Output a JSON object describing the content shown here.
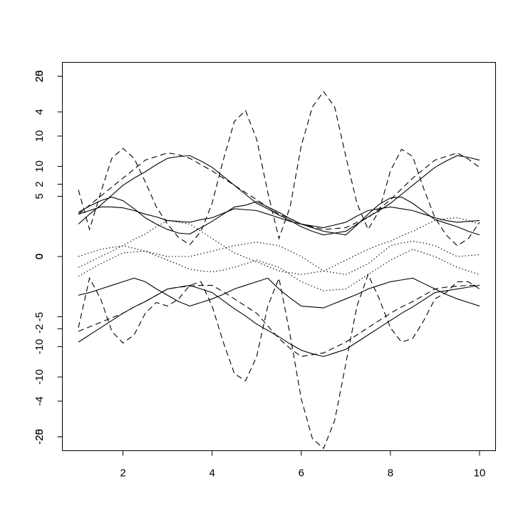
{
  "chart_data": {
    "type": "line",
    "x": [
      1,
      1.25,
      1.5,
      1.75,
      2,
      2.25,
      2.5,
      2.75,
      3,
      3.25,
      3.5,
      3.75,
      4,
      4.25,
      4.5,
      4.75,
      5,
      5.25,
      5.5,
      5.75,
      6,
      6.25,
      6.5,
      6.75,
      7,
      7.25,
      7.5,
      7.75,
      8,
      8.25,
      8.5,
      8.75,
      9,
      9.25,
      9.5,
      9.75,
      10
    ],
    "xlim": [
      0.64,
      10.36
    ],
    "xticks": [
      2,
      4,
      6,
      8,
      10
    ],
    "y_axes": [
      {
        "ylim": [
          -21.55,
          21.55
        ],
        "yticks": [
          -20,
          -10,
          0,
          10,
          20
        ]
      },
      {
        "ylim": [
          -26.93,
          26.93
        ],
        "yticks": [
          -25,
          0,
          25
        ]
      },
      {
        "ylim": [
          -16.12,
          16.12
        ],
        "yticks": [
          -10,
          -5,
          0,
          5,
          10
        ]
      },
      {
        "ylim": [
          -5.37,
          5.37
        ],
        "yticks": [
          -4,
          -2,
          0,
          2,
          4
        ]
      }
    ],
    "series": [
      {
        "color": "#000000",
        "line_style": "dashed",
        "values": [
          7.4,
          3.0,
          7.1,
          10.9,
          12.0,
          10.9,
          8.3,
          5.5,
          3.6,
          2.1,
          1.3,
          2.8,
          5.9,
          10.7,
          15.0,
          16.2,
          13.0,
          7.1,
          2.0,
          5.5,
          12.3,
          16.6,
          18.3,
          16.6,
          11.1,
          5.9,
          3.0,
          5.1,
          9.5,
          11.9,
          11.1,
          7.5,
          4.3,
          2.4,
          1.2,
          2.0,
          3.8
        ]
      },
      {
        "color": "#000000",
        "line_style": "dashed",
        "values": [
          -7.9,
          -2.4,
          -4.7,
          -8.3,
          -9.6,
          -8.7,
          -6.3,
          -5.1,
          -5.5,
          -4.7,
          -3.2,
          -2.8,
          -5.5,
          -9.5,
          -13.0,
          -13.8,
          -11.1,
          -5.5,
          -2.4,
          -8.7,
          -15.8,
          -20.2,
          -21.3,
          -18.2,
          -11.9,
          -5.5,
          -2.0,
          -4.7,
          -7.9,
          -9.5,
          -9.1,
          -7.1,
          -4.7,
          -4.0,
          -2.8,
          -2.8,
          -3.6
        ]
      },
      {
        "color": "#000000",
        "line_style": "dashed",
        "values": [
          4.7,
          5.7,
          6.7,
          7.7,
          8.7,
          9.7,
          10.7,
          11.1,
          11.5,
          11.3,
          10.9,
          10.2,
          9.5,
          8.7,
          7.9,
          7.1,
          6.3,
          5.5,
          4.7,
          4.2,
          3.6,
          3.3,
          3.0,
          3.1,
          3.2,
          3.8,
          4.3,
          5.3,
          6.3,
          7.5,
          8.7,
          9.7,
          10.7,
          11.1,
          11.5,
          10.8,
          9.9
        ]
      },
      {
        "color": "#000000",
        "line_style": "dashed",
        "values": [
          -8.3,
          -7.8,
          -7.3,
          -6.8,
          -6.3,
          -5.6,
          -5.0,
          -4.3,
          -3.6,
          -3.4,
          -3.3,
          -3.2,
          -3.2,
          -3.9,
          -4.7,
          -5.5,
          -6.3,
          -7.7,
          -9.1,
          -10.2,
          -11.1,
          -10.9,
          -10.7,
          -10.1,
          -9.5,
          -8.7,
          -7.9,
          -7.1,
          -6.3,
          -5.6,
          -5.0,
          -4.3,
          -3.6,
          -3.4,
          -3.3,
          -3.2,
          -3.2
        ]
      },
      {
        "color": "#000000",
        "line_style": "solid",
        "values": [
          3.6,
          4.7,
          5.7,
          6.8,
          7.9,
          8.7,
          9.4,
          10.2,
          10.9,
          11.1,
          11.2,
          10.6,
          9.9,
          8.9,
          7.9,
          6.9,
          5.9,
          5.3,
          4.6,
          4.0,
          3.3,
          2.8,
          2.4,
          2.6,
          2.8,
          3.6,
          4.4,
          5.1,
          5.9,
          6.9,
          7.9,
          8.9,
          9.9,
          10.6,
          11.2,
          11.0,
          10.7
        ]
      },
      {
        "color": "#000000",
        "line_style": "solid",
        "values": [
          -9.5,
          -8.7,
          -7.9,
          -7.1,
          -6.3,
          -5.6,
          -5.0,
          -4.3,
          -3.6,
          -3.4,
          -3.2,
          -3.6,
          -4.0,
          -4.9,
          -5.8,
          -6.6,
          -7.5,
          -8.2,
          -8.9,
          -9.7,
          -10.4,
          -10.8,
          -11.1,
          -10.7,
          -10.3,
          -9.5,
          -8.7,
          -7.9,
          -7.1,
          -6.3,
          -5.6,
          -4.8,
          -4.0,
          -3.8,
          -3.6,
          -3.4,
          -3.2
        ]
      },
      {
        "color": "#000000",
        "line_style": "solid",
        "values": [
          4.9,
          5.6,
          6.2,
          6.6,
          6.2,
          5.3,
          4.3,
          3.6,
          3.0,
          2.6,
          2.5,
          3.2,
          3.9,
          4.7,
          5.5,
          5.7,
          6.1,
          5.5,
          4.9,
          4.2,
          3.6,
          3.2,
          2.8,
          2.6,
          2.4,
          3.5,
          4.7,
          5.8,
          6.5,
          6.6,
          5.9,
          5.0,
          4.1,
          3.7,
          3.3,
          2.8,
          2.4
        ]
      },
      {
        "color": "#000000",
        "line_style": "solid",
        "values": [
          4.7,
          5.1,
          5.5,
          5.5,
          5.4,
          5.1,
          4.7,
          4.4,
          4.0,
          3.9,
          3.8,
          4.1,
          4.3,
          4.8,
          5.3,
          5.2,
          5.1,
          4.7,
          4.3,
          3.9,
          3.6,
          3.4,
          3.2,
          3.5,
          3.8,
          4.5,
          5.1,
          5.3,
          5.5,
          5.3,
          5.1,
          4.7,
          4.3,
          4.0,
          3.8,
          3.9,
          4.0
        ]
      },
      {
        "color": "#000000",
        "line_style": "solid",
        "values": [
          -4.3,
          -4.0,
          -3.6,
          -3.2,
          -2.8,
          -2.4,
          -2.8,
          -3.6,
          -4.3,
          -5.0,
          -5.5,
          -5.1,
          -4.7,
          -4.2,
          -3.6,
          -3.2,
          -2.8,
          -2.4,
          -3.6,
          -4.6,
          -5.5,
          -5.6,
          -5.7,
          -5.2,
          -4.7,
          -4.2,
          -3.6,
          -3.2,
          -2.8,
          -2.6,
          -2.4,
          -3.0,
          -3.6,
          -4.2,
          -4.7,
          -5.1,
          -5.5
        ]
      },
      {
        "color": "#000000",
        "line_style": "dotted",
        "values": [
          -1.2,
          -0.6,
          0,
          0.6,
          1.2,
          1.9,
          2.5,
          3.3,
          4.0,
          3.8,
          3.6,
          2.8,
          2.0,
          1.2,
          0.4,
          -0.1,
          -0.6,
          -1.1,
          -1.6,
          -1.8,
          -2.0,
          -1.8,
          -1.6,
          -1.0,
          -0.4,
          0.2,
          0.8,
          1.3,
          1.7,
          2.3,
          2.8,
          3.4,
          4.0,
          4.2,
          4.3,
          4.0,
          3.6
        ]
      },
      {
        "color": "#000000",
        "line_style": "dotted",
        "values": [
          0,
          0.4,
          0.8,
          1.0,
          1.2,
          0.9,
          0.6,
          0.3,
          0,
          0,
          0,
          0.3,
          0.6,
          0.9,
          1.2,
          1.4,
          1.6,
          1.4,
          1.2,
          0.6,
          0,
          -0.8,
          -1.6,
          -1.8,
          -2.0,
          -1.4,
          -0.8,
          0.2,
          1.2,
          1.5,
          1.7,
          1.5,
          1.2,
          0.6,
          0,
          0.1,
          0.2
        ]
      },
      {
        "color": "#000000",
        "line_style": "dotted",
        "values": [
          -2.2,
          -1.5,
          -0.8,
          -0.2,
          0.4,
          0.5,
          0.6,
          0.1,
          -0.4,
          -0.9,
          -1.4,
          -1.6,
          -1.7,
          -1.5,
          -1.2,
          -0.8,
          -0.4,
          -0.8,
          -1.2,
          -2.0,
          -2.8,
          -3.3,
          -3.8,
          -3.7,
          -3.6,
          -2.8,
          -2.0,
          -1.2,
          -0.4,
          0.2,
          0.8,
          0.4,
          0,
          -0.6,
          -1.2,
          -1.6,
          -2.0
        ]
      }
    ]
  }
}
